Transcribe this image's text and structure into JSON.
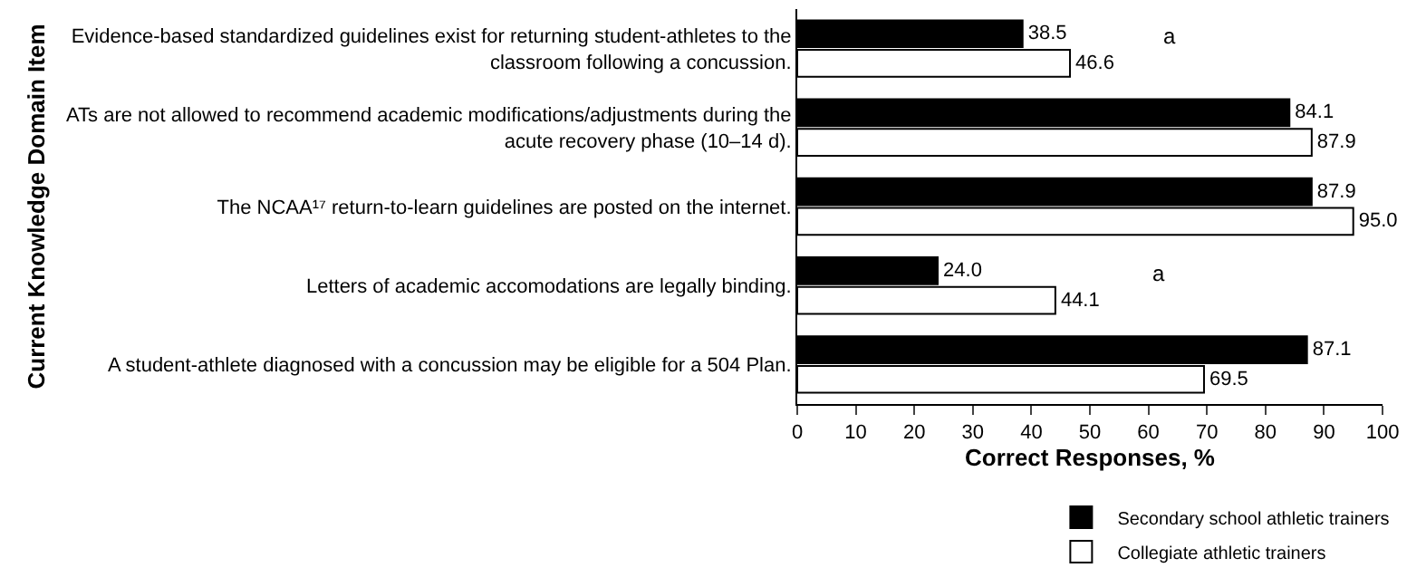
{
  "chart_data": {
    "type": "bar",
    "orientation": "horizontal",
    "xlabel": "Correct Responses, %",
    "ylabel": "Current Knowledge Domain Item",
    "categories": [
      "Evidence-based standardized guidelines exist for returning student-athletes to the classroom following a concussion.",
      "ATs are not allowed to recommend academic modifications/adjustments during the acute recovery phase (10–14 d).",
      "The NCAA¹⁷ return-to-learn guidelines are posted on the internet.",
      "Letters of academic accomodations are legally binding.",
      "A student-athlete diagnosed with a concussion may be eligible for a 504 Plan."
    ],
    "series": [
      {
        "name": "Secondary school athletic trainers",
        "color": "#000000",
        "values": [
          38.5,
          84.1,
          87.9,
          24.0,
          87.1
        ],
        "value_labels": [
          "38.5",
          "84.1",
          "87.9",
          "24.0",
          "87.1"
        ]
      },
      {
        "name": "Collegiate athletic trainers",
        "color": "#ffffff",
        "values": [
          46.6,
          87.9,
          95.0,
          44.1,
          69.5
        ],
        "value_labels": [
          "46.6",
          "87.9",
          "95.0",
          "44.1",
          "69.5"
        ]
      }
    ],
    "xlim": [
      0,
      100
    ],
    "xticks": [
      0,
      10,
      20,
      30,
      40,
      50,
      60,
      70,
      80,
      90,
      100
    ],
    "annotations": [
      "a",
      "a"
    ],
    "legend": "bottom"
  }
}
